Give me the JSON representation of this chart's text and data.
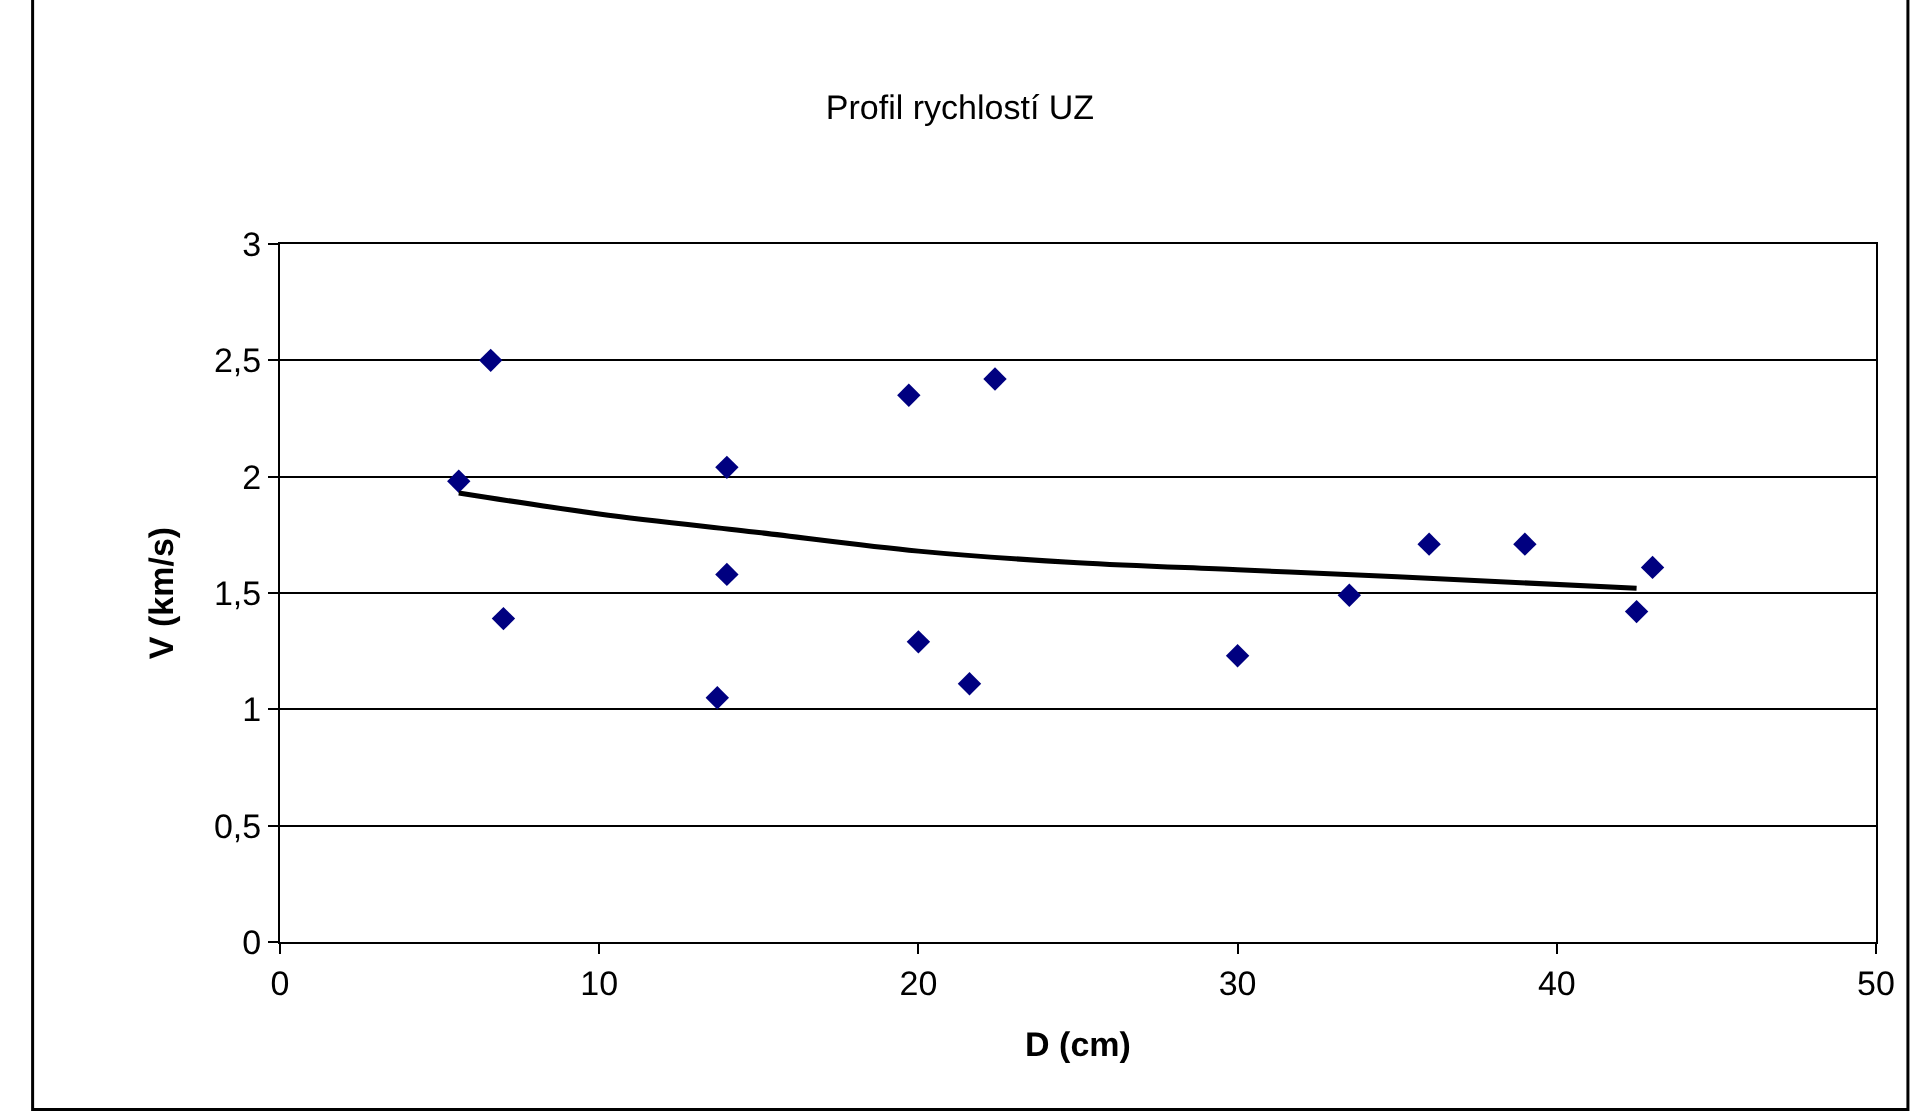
{
  "chart_data": {
    "type": "scatter",
    "title": "Profil rychlostí UZ",
    "xlabel": "D (cm)",
    "ylabel": "V (km/s)",
    "series": [
      {
        "color": "#000080",
        "marker": "diamond",
        "x": [
          5.6,
          6.6,
          7.0,
          13.7,
          14.0,
          14.0,
          19.7,
          20.0,
          21.6,
          22.4,
          30.0,
          33.5,
          36.0,
          39.0,
          42.5,
          43.0
        ],
        "values": [
          1.98,
          2.5,
          1.39,
          1.05,
          2.04,
          1.58,
          2.35,
          1.29,
          1.11,
          2.42,
          1.23,
          1.49,
          1.71,
          1.71,
          1.42,
          1.61
        ]
      },
      {
        "type": "line",
        "color": "#000000",
        "marker": "none",
        "x": [
          5.6,
          10,
          15,
          20,
          25,
          30,
          35,
          42.5
        ],
        "values": [
          1.93,
          1.84,
          1.76,
          1.68,
          1.63,
          1.6,
          1.57,
          1.52
        ]
      }
    ],
    "xlim": [
      0,
      50
    ],
    "xticks": [
      0,
      10,
      20,
      30,
      40,
      50
    ],
    "ylim": [
      0,
      3
    ],
    "yticks": [
      0,
      {
        "value": 0.5,
        "label": "0,5"
      },
      1,
      {
        "value": 1.5,
        "label": "1,5"
      },
      2,
      {
        "value": 2.5,
        "label": "2,5"
      },
      3
    ],
    "grid": "y"
  }
}
